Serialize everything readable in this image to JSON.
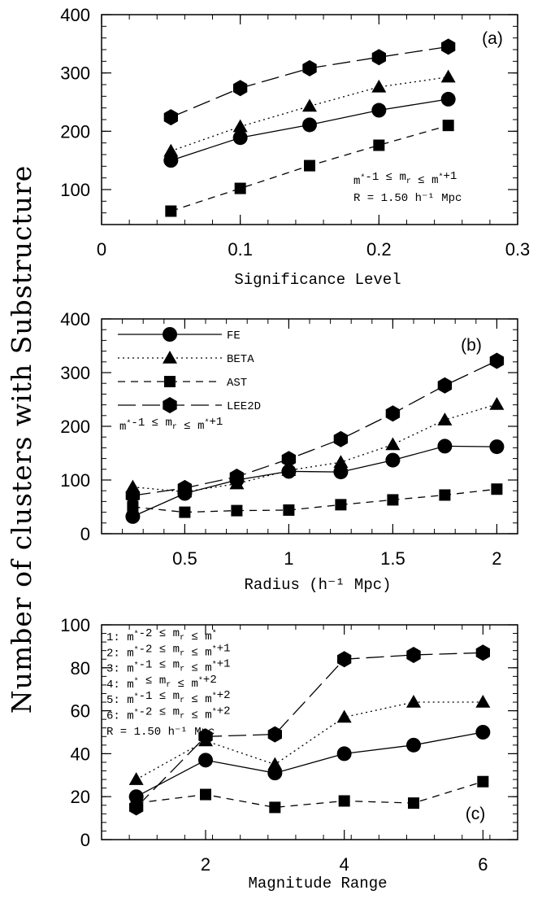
{
  "figure": {
    "shared_ylabel": "Number of clusters with Substructure"
  },
  "chart_data": [
    {
      "type": "line",
      "panel_tag": "(a)",
      "xlabel": "Significance Level",
      "ylabel": "",
      "xlim": [
        0,
        0.3
      ],
      "ylim": [
        40,
        400
      ],
      "x_ticks": [
        0,
        0.1,
        0.2,
        0.3
      ],
      "x_tick_labels": [
        "0",
        "0.1",
        "0.2",
        "0.3"
      ],
      "y_ticks": [
        100,
        200,
        300,
        400
      ],
      "y_tick_labels": [
        "100",
        "200",
        "300",
        "400"
      ],
      "x": [
        0.05,
        0.1,
        0.15,
        0.2,
        0.25
      ],
      "series": [
        {
          "marker": "circle",
          "line": "solid",
          "values": [
            150,
            189,
            211,
            236,
            255
          ]
        },
        {
          "marker": "triangle",
          "line": "dotted",
          "values": [
            166,
            208,
            243,
            276,
            293
          ]
        },
        {
          "marker": "square",
          "line": "dashed",
          "values": [
            63,
            102,
            141,
            176,
            210
          ]
        },
        {
          "marker": "hexagon",
          "line": "longdash",
          "values": [
            224,
            274,
            308,
            327,
            345
          ]
        }
      ],
      "annotations": [
        "m*-1 ≤ mr ≤ m*+1",
        "R = 1.50 h⁻¹ Mpc"
      ]
    },
    {
      "type": "line",
      "panel_tag": "(b)",
      "xlabel": "Radius (h⁻¹ Mpc)",
      "ylabel": "",
      "xlim": [
        0.1,
        2.1
      ],
      "ylim": [
        0,
        400
      ],
      "x_ticks": [
        0.5,
        1,
        1.5,
        2
      ],
      "x_tick_labels": [
        "0.5",
        "1",
        "1.5",
        "2"
      ],
      "y_ticks": [
        0,
        100,
        200,
        300,
        400
      ],
      "y_tick_labels": [
        "0",
        "100",
        "200",
        "300",
        "400"
      ],
      "x": [
        0.25,
        0.5,
        0.75,
        1.0,
        1.25,
        1.5,
        1.75,
        2.0
      ],
      "series": [
        {
          "name": "FE",
          "marker": "circle",
          "line": "solid",
          "values": [
            32,
            75,
            100,
            116,
            115,
            137,
            163,
            162
          ]
        },
        {
          "name": "BETA",
          "marker": "triangle",
          "line": "dotted",
          "values": [
            87,
            78,
            93,
            118,
            133,
            166,
            212,
            241
          ]
        },
        {
          "name": "AST",
          "marker": "square",
          "line": "dashed",
          "values": [
            50,
            40,
            43,
            44,
            54,
            63,
            72,
            83
          ]
        },
        {
          "name": "LEE2D",
          "marker": "hexagon",
          "line": "longdash",
          "values": [
            71,
            85,
            106,
            139,
            176,
            224,
            276,
            322
          ]
        }
      ],
      "legend_position": "top-left",
      "annotations": [
        "m*-1 ≤ mr ≤ m*+1"
      ]
    },
    {
      "type": "line",
      "panel_tag": "(c)",
      "xlabel": "Magnitude Range",
      "ylabel": "",
      "xlim": [
        0.5,
        6.5
      ],
      "ylim": [
        0,
        100
      ],
      "x_ticks": [
        2,
        4,
        6
      ],
      "x_tick_labels": [
        "2",
        "4",
        "6"
      ],
      "y_ticks": [
        0,
        20,
        40,
        60,
        80,
        100
      ],
      "y_tick_labels": [
        "0",
        "20",
        "40",
        "60",
        "80",
        "100"
      ],
      "x": [
        1,
        2,
        3,
        4,
        5,
        6
      ],
      "series": [
        {
          "marker": "circle",
          "line": "solid",
          "values": [
            20,
            37,
            31,
            40,
            44,
            50
          ]
        },
        {
          "marker": "triangle",
          "line": "dotted",
          "values": [
            28,
            46,
            35,
            57,
            64,
            64
          ]
        },
        {
          "marker": "square",
          "line": "dashed",
          "values": [
            17,
            21,
            15,
            18,
            17,
            27
          ]
        },
        {
          "marker": "hexagon",
          "line": "longdash",
          "values": [
            15,
            48,
            49,
            84,
            86,
            87
          ]
        }
      ],
      "annotations": [
        "1: m*-2 ≤ mr ≤ m*",
        "2: m*-2 ≤ mr ≤ m*+1",
        "3: m*-1 ≤ mr ≤ m*+1",
        "4:    m* ≤ mr ≤ m*+2",
        "5: m*-1 ≤ mr ≤ m*+2",
        "6: m*-2 ≤ mr ≤ m*+2",
        "R = 1.50 h⁻¹ Mpc"
      ]
    }
  ]
}
